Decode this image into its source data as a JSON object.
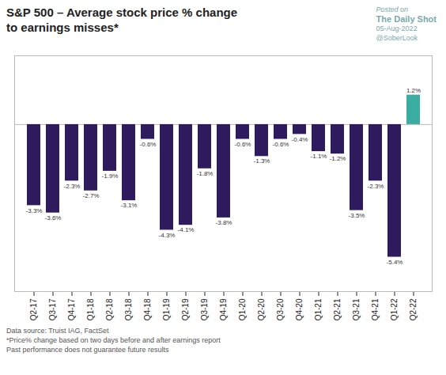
{
  "chart_data": {
    "type": "bar",
    "title": "S&P 500 – Average stock price % change",
    "subtitle": "to earnings misses*",
    "categories": [
      "Q2-17",
      "Q3-17",
      "Q4-17",
      "Q1-18",
      "Q2-18",
      "Q3-18",
      "Q4-18",
      "Q1-19",
      "Q2-19",
      "Q3-19",
      "Q4-19",
      "Q1-20",
      "Q2-20",
      "Q3-20",
      "Q4-20",
      "Q1-21",
      "Q2-21",
      "Q3-21",
      "Q4-21",
      "Q1-22",
      "Q2-22"
    ],
    "values": [
      -3.3,
      -3.6,
      -2.3,
      -2.7,
      -1.9,
      -3.1,
      -0.6,
      -4.3,
      -4.1,
      -1.8,
      -3.8,
      -0.6,
      -1.3,
      -0.6,
      -0.4,
      -1.1,
      -1.2,
      -3.5,
      -2.3,
      -5.4,
      1.2
    ],
    "value_labels": [
      "-3.3%",
      "-3.6%",
      "-2.3%",
      "-2.7%",
      "-1.9%",
      "-3.1%",
      "-0.6%",
      "-4.3%",
      "-4.1%",
      "-1.8%",
      "-3.8%",
      "-0.6%",
      "-1.3%",
      "-0.6%",
      "-0.4%",
      "-1.1%",
      "-1.2%",
      "-3.5%",
      "-2.3%",
      "-5.4%",
      "1.2%"
    ],
    "colors": [
      "#2d1b5e",
      "#2d1b5e",
      "#2d1b5e",
      "#2d1b5e",
      "#2d1b5e",
      "#2d1b5e",
      "#2d1b5e",
      "#2d1b5e",
      "#2d1b5e",
      "#2d1b5e",
      "#2d1b5e",
      "#2d1b5e",
      "#2d1b5e",
      "#2d1b5e",
      "#2d1b5e",
      "#2d1b5e",
      "#2d1b5e",
      "#2d1b5e",
      "#2d1b5e",
      "#2d1b5e",
      "#3aada0"
    ],
    "ylim": [
      -6.8,
      2.8
    ],
    "data_labels": true,
    "tick_labels": "x",
    "grid": false,
    "annotations": [
      "Posted on",
      "The Daily Shot",
      "05-Aug-2022",
      "@SoberLook",
      "Data source: Truist IAG, FactSet",
      "*Price% change based on two days before and after earnings report",
      "Past performance does not guarantee future results"
    ]
  }
}
